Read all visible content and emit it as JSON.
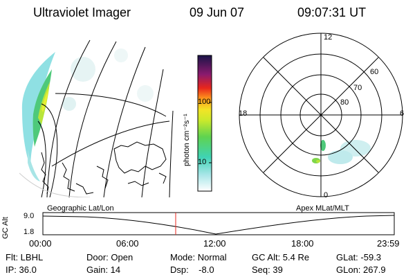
{
  "header": {
    "instrument": "Ultraviolet Imager",
    "date": "09 Jun 07",
    "time": "09:07:31 UT"
  },
  "colorbar": {
    "label": "photon cm⁻²s⁻¹",
    "ticks": [
      "100",
      "10"
    ]
  },
  "polar_plot": {
    "mlt_labels": [
      "12",
      "18",
      "6",
      "0"
    ],
    "lat_labels": [
      "60",
      "70",
      "80"
    ]
  },
  "timeline": {
    "y_axis_label": "GC Alt",
    "y_ticks": [
      "9.0",
      "1.8"
    ],
    "left_title": "Geographic Lat/Lon",
    "right_title": "Apex MLat/MLT",
    "x_ticks": [
      "00:00",
      "06:00",
      "12:00",
      "18:00",
      "23:59"
    ],
    "marker_color": "#e8261c"
  },
  "info": {
    "flt": "Flt: LBHL",
    "ip": "IP: 36.0",
    "door": "Door: Open",
    "gain": "Gain: 14",
    "mode": "Mode: Normal",
    "dsp": "Dsp:    -8.0",
    "gc_alt": "GC Alt: 5.4 Re",
    "seq": "Seq: 39",
    "glat": "GLat: -59.3",
    "glon": "GLon: 267.9"
  }
}
